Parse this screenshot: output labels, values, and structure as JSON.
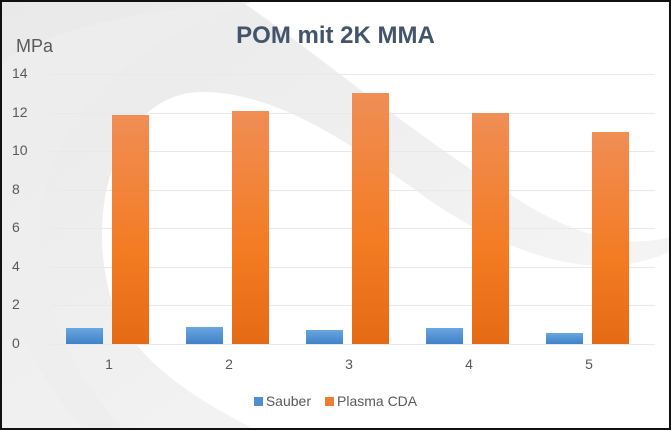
{
  "chart_data": {
    "type": "bar",
    "title": "POM mit 2K MMA",
    "xlabel": "",
    "ylabel": "MPa",
    "categories": [
      "1",
      "2",
      "3",
      "4",
      "5"
    ],
    "series": [
      {
        "name": "Sauber",
        "color": "#5b9bd5",
        "values": [
          0.83,
          0.9,
          0.73,
          0.83,
          0.57
        ]
      },
      {
        "name": "Plasma CDA",
        "color": "#ed7d31",
        "values": [
          11.9,
          12.1,
          13.0,
          12.0,
          11.0
        ]
      }
    ],
    "ylim": [
      0,
      14
    ],
    "yticks": [
      "0",
      "2",
      "4",
      "6",
      "8",
      "10",
      "12",
      "14"
    ],
    "grid": true,
    "legend_position": "bottom"
  }
}
